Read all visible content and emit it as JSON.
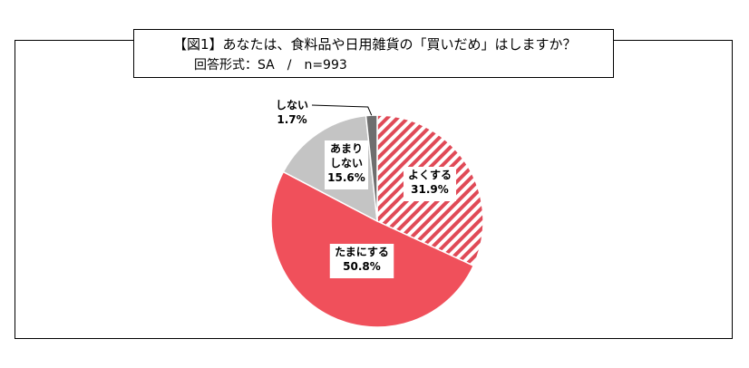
{
  "title": "【図1】あなたは、食料品や日用雑貨の「買いだめ」はしますか？",
  "subtitle": "回答形式：SA　/　n=993",
  "chart_data": {
    "type": "pie",
    "slices": [
      {
        "name": "よくする",
        "label_lines": [
          "よくする",
          "31.9%"
        ],
        "value": 31.9,
        "color": "#e04a57",
        "pattern": "hatch"
      },
      {
        "name": "たまにする",
        "label_lines": [
          "たまにする",
          "50.8%"
        ],
        "value": 50.8,
        "color": "#f0505b",
        "pattern": "solid"
      },
      {
        "name": "あまりしない",
        "label_lines": [
          "あまり",
          "しない",
          "15.6%"
        ],
        "value": 15.6,
        "color": "#c4c4c4",
        "pattern": "solid"
      },
      {
        "name": "しない",
        "label_lines": [
          "しない",
          "1.7%"
        ],
        "value": 1.7,
        "color": "#6e6e6e",
        "pattern": "solid"
      }
    ]
  }
}
